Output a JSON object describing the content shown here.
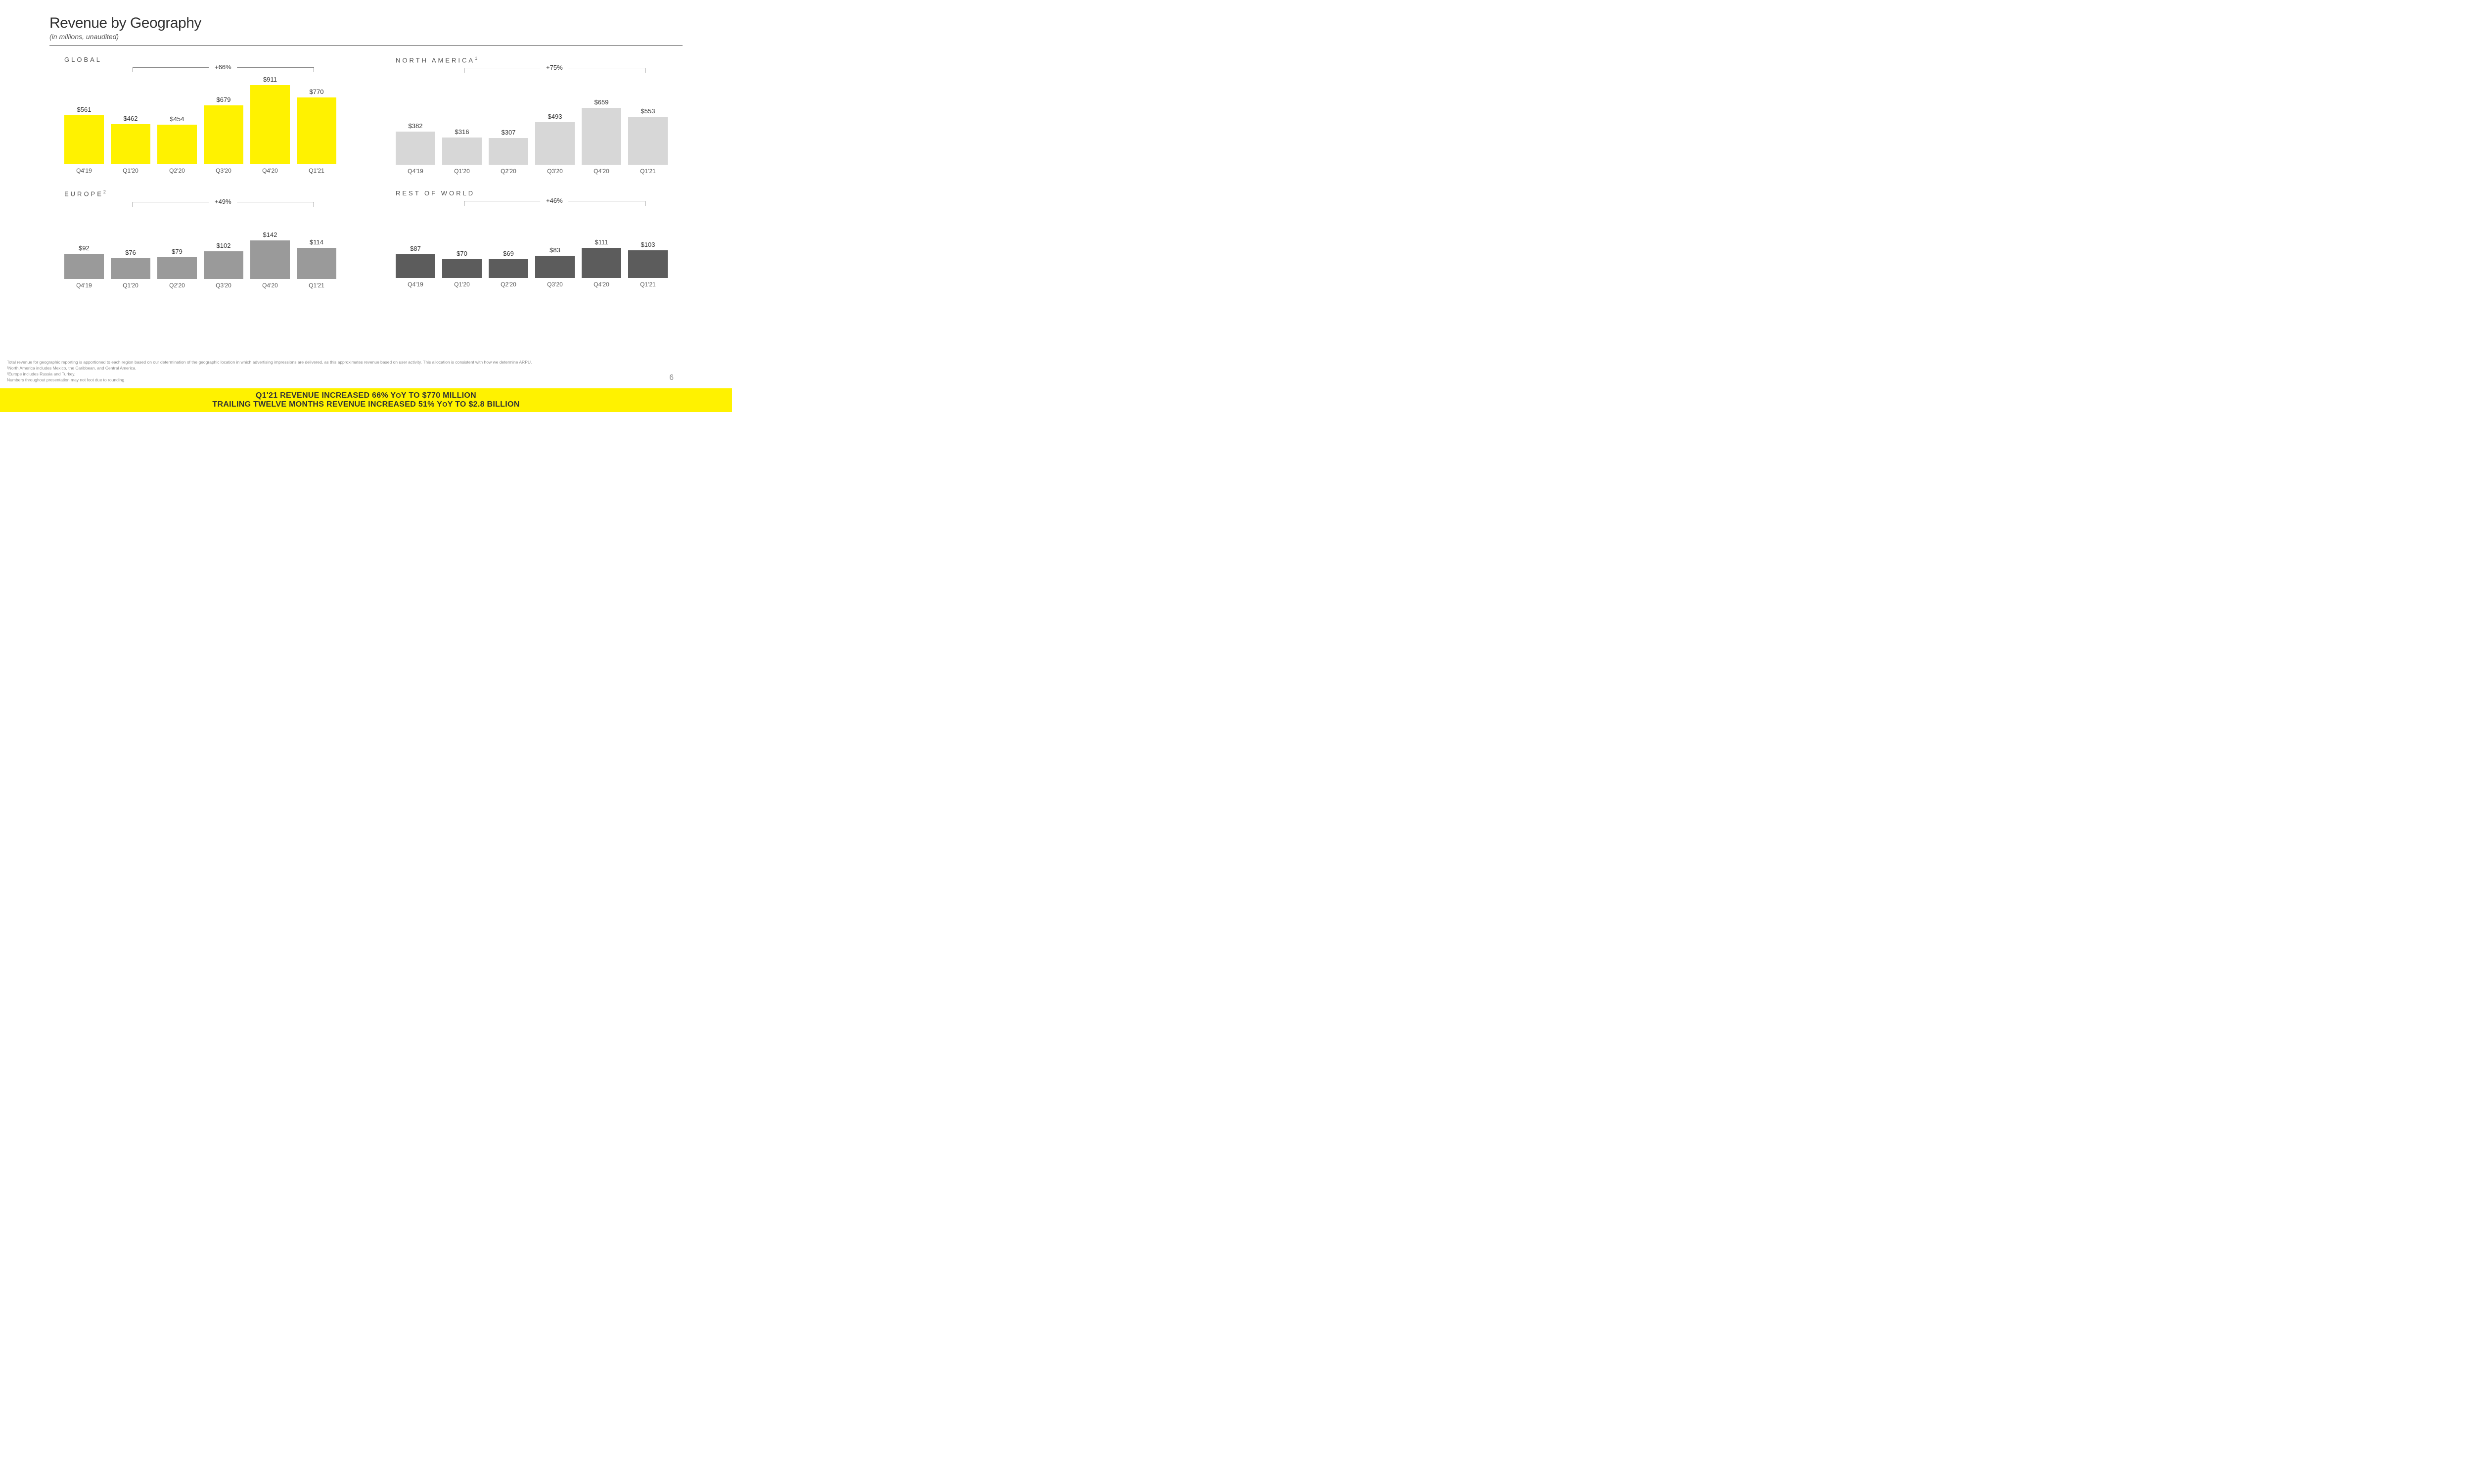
{
  "page": {
    "title": "Revenue by Geography",
    "subtitle": "(in millions, unaudited)",
    "number": "6"
  },
  "categories": [
    "Q4'19",
    "Q1'20",
    "Q2'20",
    "Q3'20",
    "Q4'20",
    "Q1'21"
  ],
  "charts": [
    {
      "id": "global",
      "title": "GLOBAL",
      "superscript": "",
      "growth": "+66%",
      "values": [
        561,
        462,
        454,
        679,
        911,
        770
      ],
      "labels": [
        "$561",
        "$462",
        "$454",
        "$679",
        "$911",
        "$770"
      ],
      "bar_color": "#fff200",
      "ymax": 911,
      "bar_area_height": 170,
      "max_bar_height": 160,
      "bracket_from_idx": 1,
      "bracket_to_idx": 5
    },
    {
      "id": "na",
      "title": "NORTH AMERICA",
      "superscript": "1",
      "growth": "+75%",
      "values": [
        382,
        316,
        307,
        493,
        659,
        553
      ],
      "labels": [
        "$382",
        "$316",
        "$307",
        "$493",
        "$659",
        "$553"
      ],
      "bar_color": "#d7d7d7",
      "ymax": 911,
      "bar_area_height": 170,
      "max_bar_height": 160,
      "bracket_from_idx": 1,
      "bracket_to_idx": 5
    },
    {
      "id": "eu",
      "title": "EUROPE",
      "superscript": "2",
      "growth": "+49%",
      "values": [
        92,
        76,
        79,
        102,
        142,
        114
      ],
      "labels": [
        "$92",
        "$76",
        "$79",
        "$102",
        "$142",
        "$114"
      ],
      "bar_color": "#9a9a9a",
      "ymax": 200,
      "bar_area_height": 130,
      "max_bar_height": 110,
      "bracket_from_idx": 1,
      "bracket_to_idx": 5
    },
    {
      "id": "row",
      "title": "REST OF WORLD",
      "superscript": "",
      "growth": "+46%",
      "values": [
        87,
        70,
        69,
        83,
        111,
        103
      ],
      "labels": [
        "$87",
        "$70",
        "$69",
        "$83",
        "$111",
        "$103"
      ],
      "bar_color": "#5c5c5c",
      "ymax": 200,
      "bar_area_height": 130,
      "max_bar_height": 110,
      "bracket_from_idx": 1,
      "bracket_to_idx": 5
    }
  ],
  "footnotes": [
    "Total revenue for geographic reporting is apportioned to each region based on our determination of the geographic location in which advertising impressions are delivered, as this approximates revenue based on user activity.  This allocation is consistent with how we determine ARPU.",
    "¹North America includes Mexico, the Caribbean, and Central America.",
    "²Europe includes Russia and Turkey.",
    "Numbers throughout presentation may not foot due to rounding."
  ],
  "banner": {
    "line1_pre": "Q1'21 REVENUE INCREASED 66% Y",
    "line1_o": "O",
    "line1_post": "Y TO $770 MILLION",
    "line2_pre": "TRAILING TWELVE MONTHS REVENUE INCREASED 51% Y",
    "line2_o": "O",
    "line2_post": "Y TO $2.8 BILLION",
    "background": "#fff200"
  }
}
